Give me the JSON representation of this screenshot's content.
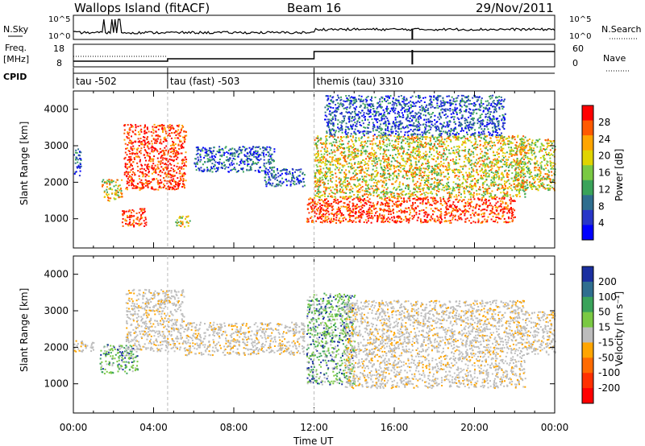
{
  "header": {
    "station": "Wallops Island (fitACF)",
    "beam": "Beam 16",
    "date": "29/Nov/2011"
  },
  "noise_panel": {
    "left_label": "N.Sky",
    "right_label": "N.Search",
    "left_ticks": [
      "10^5",
      "10^0"
    ],
    "right_ticks": [
      "10^5",
      "10^0"
    ]
  },
  "freq_panel": {
    "left_label_1": "Freq.",
    "left_label_2": "[MHz]",
    "right_label": "Nave",
    "left_ticks": [
      "18",
      "8"
    ],
    "right_ticks": [
      "60",
      "0"
    ]
  },
  "cpid": {
    "label": "CPID",
    "segments": [
      {
        "start": 0,
        "end": 4.7,
        "label": "tau -502"
      },
      {
        "start": 4.7,
        "end": 12.0,
        "label": "tau (fast) -503"
      },
      {
        "start": 12.0,
        "end": 24.0,
        "label": "themis (tau) 3310"
      }
    ]
  },
  "axes": {
    "y_label": "Slant Range [km]",
    "x_label": "Time UT",
    "x_ticks": [
      "00:00",
      "04:00",
      "08:00",
      "12:00",
      "16:00",
      "20:00",
      "00:00"
    ],
    "y_ticks": [
      "1000",
      "2000",
      "3000",
      "4000"
    ]
  },
  "power_colorbar": {
    "label": "Power [dB]",
    "ticks": [
      "28",
      "24",
      "20",
      "16",
      "12",
      "8",
      "4"
    ],
    "colors": [
      "#ff0000",
      "#ff5a00",
      "#ffa500",
      "#e0d400",
      "#7ac943",
      "#3aa35a",
      "#2f6e8f",
      "#2836c8",
      "#0000ff"
    ]
  },
  "velocity_colorbar": {
    "label": "Velocity [m s⁻¹]",
    "ticks": [
      "200",
      "100",
      "50",
      "15",
      "-15",
      "-50",
      "-100",
      "-200"
    ],
    "colors": [
      "#1a2fa0",
      "#2f6e8f",
      "#3aa35a",
      "#7ac943",
      "#bcbcbc",
      "#ffa500",
      "#ff6a00",
      "#ff3000",
      "#ff0000"
    ]
  },
  "chart_data": [
    {
      "type": "heatmap",
      "title": "Power",
      "xlabel": "Time UT",
      "ylabel": "Slant Range [km]",
      "xlim": [
        0,
        24
      ],
      "ylim": [
        200,
        4500
      ],
      "x_unit": "hours UT",
      "bands": [
        {
          "t0": 0.0,
          "t1": 0.35,
          "r0": 2200,
          "r1": 3000,
          "level": "low"
        },
        {
          "t0": 1.4,
          "t1": 2.4,
          "r0": 1500,
          "r1": 2100,
          "level": "mid"
        },
        {
          "t0": 2.4,
          "t1": 3.6,
          "r0": 800,
          "r1": 1300,
          "level": "high"
        },
        {
          "t0": 2.5,
          "t1": 5.6,
          "r0": 1800,
          "r1": 3600,
          "level": "high"
        },
        {
          "t0": 5.0,
          "t1": 5.8,
          "r0": 800,
          "r1": 1100,
          "level": "mid"
        },
        {
          "t0": 6.0,
          "t1": 10.0,
          "r0": 2300,
          "r1": 3000,
          "level": "low"
        },
        {
          "t0": 9.5,
          "t1": 11.5,
          "r0": 1900,
          "r1": 2400,
          "level": "low"
        },
        {
          "t0": 11.6,
          "t1": 22.0,
          "r0": 900,
          "r1": 1600,
          "level": "high"
        },
        {
          "t0": 12.0,
          "t1": 22.5,
          "r0": 1600,
          "r1": 3300,
          "level": "mid"
        },
        {
          "t0": 12.5,
          "t1": 21.5,
          "r0": 3300,
          "r1": 4400,
          "level": "low"
        },
        {
          "t0": 22.0,
          "t1": 24.0,
          "r0": 1800,
          "r1": 3200,
          "level": "mid"
        }
      ]
    },
    {
      "type": "heatmap",
      "title": "Velocity",
      "xlabel": "Time UT",
      "ylabel": "Slant Range [km]",
      "xlim": [
        0,
        24
      ],
      "ylim": [
        200,
        4500
      ],
      "x_unit": "hours UT",
      "bands": [
        {
          "t0": 0.0,
          "t1": 1.0,
          "r0": 1900,
          "r1": 2200,
          "level": "grey"
        },
        {
          "t0": 1.3,
          "t1": 3.2,
          "r0": 1300,
          "r1": 2100,
          "level": "green"
        },
        {
          "t0": 2.6,
          "t1": 5.5,
          "r0": 1900,
          "r1": 3600,
          "level": "grey"
        },
        {
          "t0": 5.5,
          "t1": 11.5,
          "r0": 1800,
          "r1": 2700,
          "level": "grey"
        },
        {
          "t0": 11.6,
          "t1": 14.0,
          "r0": 1000,
          "r1": 3500,
          "level": "green"
        },
        {
          "t0": 13.5,
          "t1": 22.5,
          "r0": 900,
          "r1": 3300,
          "level": "grey"
        },
        {
          "t0": 22.5,
          "t1": 24.0,
          "r0": 1800,
          "r1": 3000,
          "level": "grey"
        }
      ]
    }
  ]
}
